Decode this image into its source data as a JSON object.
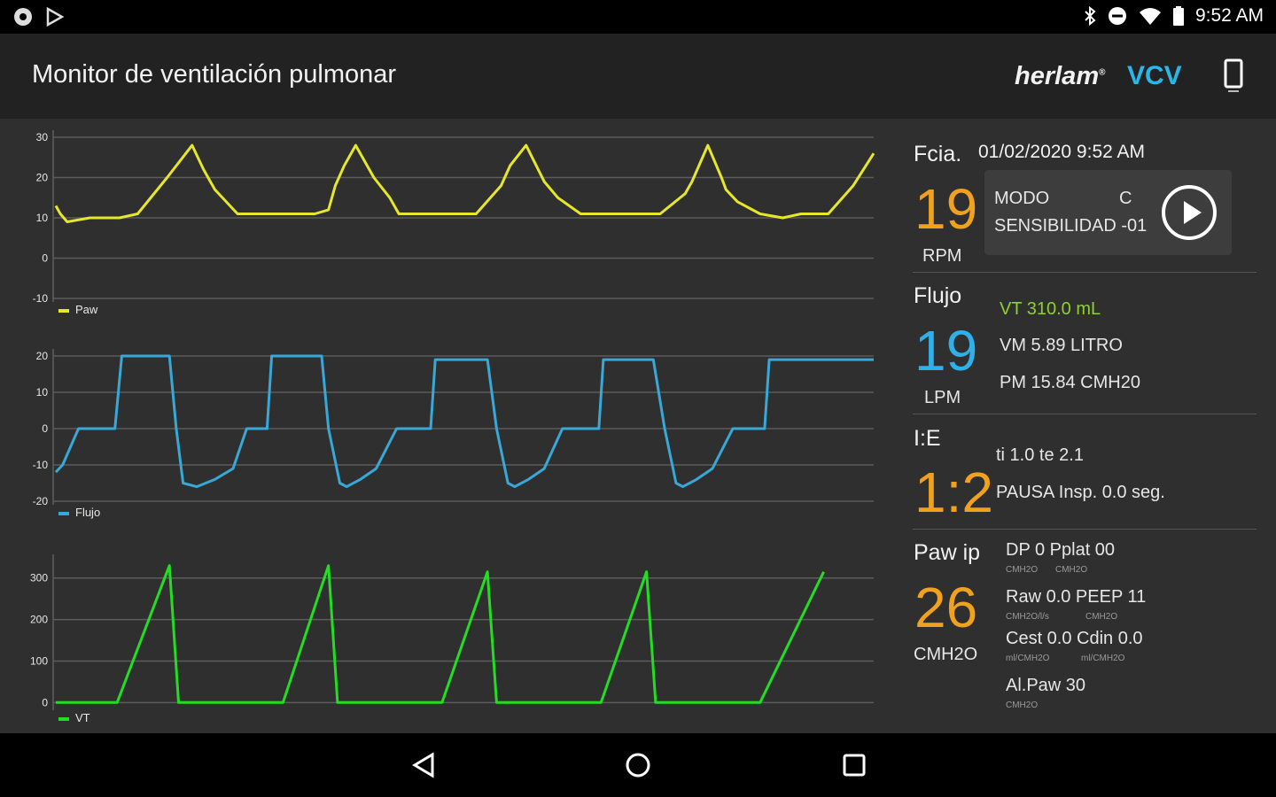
{
  "status": {
    "time": "9:52 AM"
  },
  "app": {
    "title": "Monitor de ventilación pulmonar",
    "brand": "herlam",
    "brand_mark": "®",
    "mode": "VCV"
  },
  "colors": {
    "paw": "#e6e62a",
    "flujo": "#38a8d8",
    "vt": "#22dd22",
    "orange": "#f0a21e",
    "blue": "#2eb0ea",
    "green": "#8bd42a",
    "accent": "#29b6e8"
  },
  "panel": {
    "fcia": {
      "label": "Fcia.",
      "datetime": "01/02/2020 9:52 AM",
      "value": "19",
      "unit": "RPM"
    },
    "modo": {
      "line1": "MODO",
      "line1_value": "C",
      "line2": "SENSIBILIDAD -01"
    },
    "flujo": {
      "label": "Flujo",
      "value": "19",
      "unit": "LPM",
      "vt": "VT  310.0  mL",
      "vm": "VM  5.89  LITRO",
      "pm": "PM  15.84  CMH20"
    },
    "ie": {
      "label": "I:E",
      "value": "1:2",
      "ti_te": "ti  1.0  te  2.1",
      "pausa": "PAUSA Insp.  0.0  seg."
    },
    "paw": {
      "label": "Paw ip",
      "value": "26",
      "unit": "CMH2O",
      "rows": [
        {
          "text": "DP 0 Pplat 00",
          "sub1": "CMH2O",
          "sub2": "CMH2O"
        },
        {
          "text": "Raw 0.0 PEEP 11",
          "sub1": "CMH2O/l/s",
          "sub2": "CMH2O"
        },
        {
          "text": "Cest 0.0 Cdin 0.0",
          "sub1": "ml/CMH2O",
          "sub2": "ml/CMH2O"
        },
        {
          "text": "Al.Paw 30",
          "sub1": "CMH2O",
          "sub2": ""
        }
      ]
    }
  },
  "chart_data": [
    {
      "type": "line",
      "series": [
        {
          "name": "Paw",
          "color": "#e6e62a",
          "x": [
            0,
            0.2,
            0.5,
            1.5,
            2.5,
            2.8,
            3.6,
            4.9,
            6.0,
            6.5,
            7.0,
            8.0,
            9.3,
            10.0,
            10.7,
            11.4,
            12.0,
            12.3,
            12.7,
            13.2,
            14.0,
            14.7,
            15.1,
            16.5,
            17.5,
            18.0,
            18.5,
            19.6,
            20.0,
            20.7,
            21.5,
            22.1,
            23.1,
            24.6,
            25.6,
            26.1,
            26.6,
            27.7,
            28.0,
            28.7,
            29.3,
            29.5,
            30.0,
            31.0,
            32.0,
            32.8,
            34.0,
            35.1,
            36.0
          ],
          "y": [
            13,
            11,
            9,
            10,
            10,
            10,
            11,
            20,
            28,
            22,
            17,
            11,
            11,
            11,
            11,
            11,
            12,
            18,
            23,
            28,
            20,
            15,
            11,
            11,
            11,
            11,
            11,
            18,
            23,
            28,
            19,
            15,
            11,
            11,
            11,
            11,
            11,
            16,
            19,
            28,
            20,
            17,
            14,
            11,
            10,
            11,
            11,
            18,
            26
          ]
        }
      ],
      "legend": [
        "Paw"
      ],
      "ylim": [
        -10,
        30
      ],
      "yticks": [
        30,
        20,
        10,
        0,
        -10
      ],
      "grid": true,
      "legend_position": "bottom-left"
    },
    {
      "type": "line",
      "series": [
        {
          "name": "Flujo",
          "color": "#38a8d8",
          "x": [
            0,
            0.3,
            1.0,
            1.5,
            2.1,
            2.6,
            2.9,
            4.8,
            5.0,
            5.3,
            5.6,
            6.2,
            7.0,
            7.8,
            8.4,
            8.9,
            9.3,
            9.5,
            11.1,
            11.7,
            12.0,
            12.5,
            12.8,
            13.4,
            14.1,
            15.0,
            15.6,
            16.1,
            16.5,
            16.7,
            18.5,
            19.0,
            19.4,
            19.9,
            20.2,
            20.8,
            21.5,
            22.3,
            23.0,
            23.5,
            23.9,
            24.1,
            25.8,
            26.3,
            26.8,
            27.3,
            27.6,
            28.2,
            28.9,
            29.8,
            30.3,
            30.8,
            31.2,
            31.4,
            34.0,
            34.4,
            34.8,
            36.0
          ],
          "y": [
            -12,
            -10,
            0,
            0,
            0,
            0,
            20,
            20,
            20,
            0,
            -15,
            -16,
            -14,
            -11,
            0,
            0,
            0,
            20,
            20,
            20,
            0,
            -15,
            -16,
            -14,
            -11,
            0,
            0,
            0,
            0,
            19,
            19,
            19,
            0,
            -15,
            -16,
            -14,
            -11,
            0,
            0,
            0,
            0,
            19,
            19,
            19,
            0,
            -15,
            -16,
            -14,
            -11,
            0,
            0,
            0,
            0,
            19,
            19,
            19,
            19,
            19
          ]
        }
      ],
      "legend": [
        "Flujo"
      ],
      "ylim": [
        -20,
        20
      ],
      "yticks": [
        20,
        10,
        0,
        -10,
        -20
      ],
      "grid": true,
      "legend_position": "bottom-left"
    },
    {
      "type": "line",
      "series": [
        {
          "name": "VT",
          "color": "#22dd22",
          "x": [
            0,
            2.7,
            5.0,
            5.4,
            10.0,
            12.0,
            12.4,
            17.0,
            19.0,
            19.4,
            24.0,
            26.0,
            26.4,
            31.0,
            33.8
          ],
          "y": [
            0,
            0,
            330,
            0,
            0,
            330,
            0,
            0,
            315,
            0,
            0,
            315,
            0,
            0,
            315
          ]
        }
      ],
      "legend": [
        "VT"
      ],
      "ylim": [
        -10,
        340
      ],
      "yticks": [
        300,
        200,
        100,
        0
      ],
      "grid": true,
      "legend_position": "bottom-left"
    }
  ]
}
